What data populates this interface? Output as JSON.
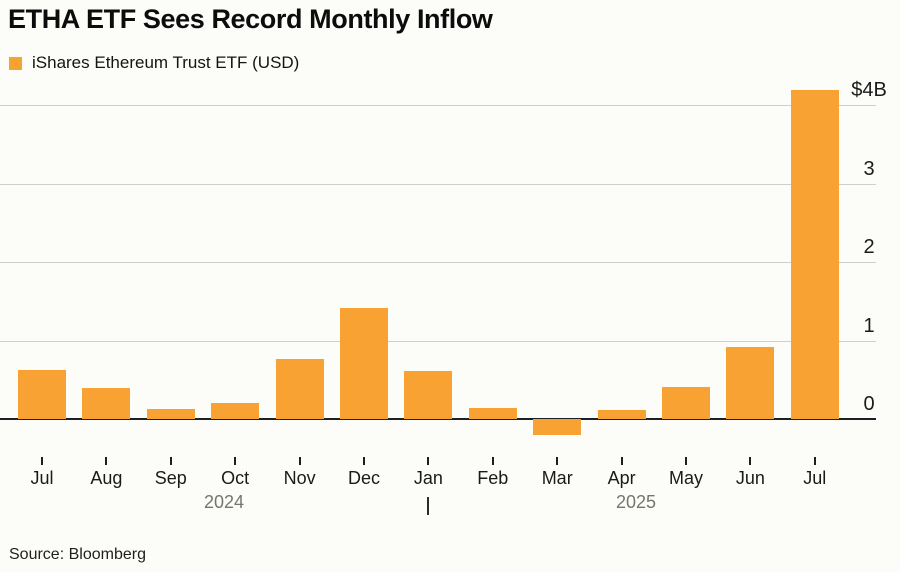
{
  "header": {
    "title": "ETHA ETF Sees Record Monthly Inflow"
  },
  "legend": {
    "label": "iShares Ethereum Trust ETF (USD)",
    "swatch_color": "#F9A234"
  },
  "footer": {
    "source": "Source: Bloomberg"
  },
  "chart_data": {
    "type": "bar",
    "title": "ETHA ETF Sees Record Monthly Inflow",
    "series_name": "iShares Ethereum Trust ETF (USD)",
    "unit": "USD billions",
    "categories": [
      "Jul",
      "Aug",
      "Sep",
      "Oct",
      "Nov",
      "Dec",
      "Jan",
      "Feb",
      "Mar",
      "Apr",
      "May",
      "Jun",
      "Jul"
    ],
    "category_years": [
      "2024",
      "2024",
      "2024",
      "2024",
      "2024",
      "2024",
      "2025",
      "2025",
      "2025",
      "2025",
      "2025",
      "2025",
      "2025"
    ],
    "values": [
      0.62,
      0.4,
      0.13,
      0.2,
      0.76,
      1.42,
      0.61,
      0.14,
      -0.2,
      0.11,
      0.41,
      0.92,
      4.2
    ],
    "y_ticks": [
      {
        "value": 4,
        "label": "$4B"
      },
      {
        "value": 3,
        "label": "3"
      },
      {
        "value": 2,
        "label": "2"
      },
      {
        "value": 1,
        "label": "1"
      },
      {
        "value": 0,
        "label": "0"
      }
    ],
    "x_year_labels": [
      {
        "label": "2024"
      },
      {
        "label": "2025"
      }
    ],
    "year_divider_after_index": 6,
    "ylim": [
      -0.4,
      4.35
    ],
    "grid": true,
    "bar_color": "#F9A234",
    "legend_position": "top-left"
  }
}
